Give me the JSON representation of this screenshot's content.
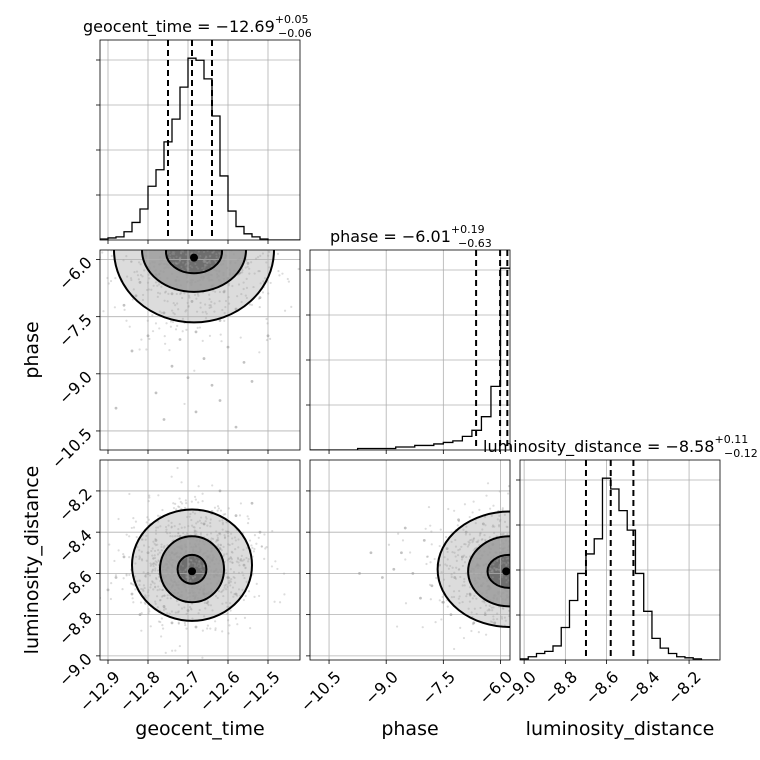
{
  "chart_data": {
    "type": "corner",
    "parameters": [
      {
        "name": "geocent_time",
        "label": "geocent_time",
        "title": {
          "prefix": "geocent_time = −12.69",
          "upper": "+0.05",
          "lower": "−0.06"
        },
        "range": [
          -12.92,
          -12.42
        ],
        "ticks": [
          "−12.9",
          "−12.8",
          "−12.7",
          "−12.6",
          "−12.5"
        ],
        "tick_values": [
          -12.9,
          -12.8,
          -12.7,
          -12.6,
          -12.5
        ],
        "median": -12.69,
        "quantiles": [
          -12.75,
          -12.69,
          -12.64
        ],
        "histogram": {
          "edges": [
            -12.92,
            -12.9,
            -12.88,
            -12.86,
            -12.84,
            -12.82,
            -12.8,
            -12.78,
            -12.76,
            -12.74,
            -12.72,
            -12.7,
            -12.68,
            -12.66,
            -12.64,
            -12.62,
            -12.6,
            -12.58,
            -12.56,
            -12.54,
            -12.52,
            -12.5,
            -12.48,
            -12.46,
            -12.44,
            -12.42
          ],
          "counts": [
            1,
            2,
            3,
            8,
            17,
            30,
            52,
            68,
            95,
            117,
            148,
            176,
            174,
            156,
            120,
            62,
            28,
            13,
            6,
            3,
            1,
            0,
            0,
            0,
            0
          ]
        }
      },
      {
        "name": "phase",
        "label": "phase",
        "title": {
          "prefix": "phase = −6.01",
          "upper": "+0.19",
          "lower": "−0.63"
        },
        "range": [
          -11.0,
          -5.75
        ],
        "ticks": [
          "−10.5",
          "−9.0",
          "−7.5",
          "−6.0"
        ],
        "tick_values": [
          -10.5,
          -9.0,
          -7.5,
          -6.0
        ],
        "median": -6.01,
        "quantiles": [
          -6.64,
          -6.01,
          -5.82
        ],
        "histogram": {
          "edges": [
            -11.0,
            -10.75,
            -10.5,
            -10.25,
            -10.0,
            -9.75,
            -9.5,
            -9.25,
            -9.0,
            -8.75,
            -8.5,
            -8.25,
            -8.0,
            -7.75,
            -7.5,
            -7.25,
            -7.0,
            -6.75,
            -6.5,
            -6.25,
            -6.0,
            -5.75
          ],
          "counts": [
            0,
            0,
            0,
            0,
            0,
            1,
            1,
            1,
            1,
            2,
            2,
            3,
            3,
            4,
            5,
            6,
            9,
            13,
            22,
            42,
            120
          ]
        }
      },
      {
        "name": "luminosity_distance",
        "label": "luminosity_distance",
        "title": {
          "prefix": "luminosity_distance = −8.58",
          "upper": "+0.11",
          "lower": "−0.12"
        },
        "range": [
          -9.02,
          -8.05
        ],
        "ticks": [
          "−9.0",
          "−8.8",
          "−8.6",
          "−8.4",
          "−8.2"
        ],
        "tick_values": [
          -9.0,
          -8.8,
          -8.6,
          -8.4,
          -8.2
        ],
        "median": -8.58,
        "quantiles": [
          -8.7,
          -8.58,
          -8.47
        ],
        "histogram": {
          "edges": [
            -9.02,
            -8.98,
            -8.94,
            -8.9,
            -8.86,
            -8.82,
            -8.78,
            -8.74,
            -8.7,
            -8.66,
            -8.62,
            -8.58,
            -8.54,
            -8.5,
            -8.46,
            -8.42,
            -8.38,
            -8.34,
            -8.3,
            -8.26,
            -8.22,
            -8.18,
            -8.14,
            -8.1,
            -8.06
          ],
          "counts": [
            1,
            3,
            6,
            8,
            13,
            30,
            55,
            80,
            98,
            112,
            168,
            158,
            138,
            120,
            80,
            45,
            20,
            11,
            6,
            3,
            2,
            1,
            0,
            0
          ]
        }
      }
    ],
    "pairs": [
      {
        "x": "geocent_time",
        "y": "phase",
        "peak": [
          -12.685,
          -5.95
        ],
        "samples": [
          [
            -12.7,
            -6.1
          ],
          [
            -12.66,
            -6.3
          ],
          [
            -12.72,
            -6.0
          ],
          [
            -12.6,
            -6.5
          ],
          [
            -12.78,
            -6.4
          ],
          [
            -12.8,
            -6.2
          ],
          [
            -12.55,
            -6.1
          ],
          [
            -12.64,
            -6.7
          ],
          [
            -12.74,
            -6.9
          ],
          [
            -12.69,
            -7.1
          ],
          [
            -12.58,
            -7.3
          ],
          [
            -12.82,
            -6.6
          ],
          [
            -12.76,
            -7.4
          ],
          [
            -12.62,
            -7.6
          ],
          [
            -12.68,
            -7.9
          ],
          [
            -12.72,
            -8.1
          ],
          [
            -12.6,
            -8.3
          ],
          [
            -12.8,
            -8.0
          ],
          [
            -12.86,
            -7.2
          ],
          [
            -12.52,
            -7.0
          ],
          [
            -12.66,
            -8.6
          ],
          [
            -12.74,
            -8.8
          ],
          [
            -12.56,
            -8.7
          ],
          [
            -12.7,
            -9.1
          ],
          [
            -12.64,
            -9.3
          ],
          [
            -12.78,
            -9.5
          ],
          [
            -12.84,
            -8.4
          ],
          [
            -12.5,
            -8.0
          ],
          [
            -12.62,
            -9.7
          ],
          [
            -12.68,
            -10.0
          ],
          [
            -12.76,
            -10.2
          ],
          [
            -12.58,
            -10.4
          ],
          [
            -12.88,
            -9.9
          ],
          [
            -12.54,
            -9.2
          ],
          [
            -12.66,
            -6.05
          ],
          [
            -12.7,
            -6.25
          ],
          [
            -12.73,
            -6.55
          ],
          [
            -12.61,
            -6.85
          ],
          [
            -12.57,
            -6.35
          ],
          [
            -12.83,
            -6.95
          ]
        ],
        "contour_levels": [
          {
            "center": [
              -12.685,
              -5.8
            ],
            "sx": 0.035,
            "sy": 0.28
          },
          {
            "center": [
              -12.685,
              -5.75
            ],
            "sx": 0.065,
            "sy": 0.55
          },
          {
            "center": [
              -12.685,
              -5.75
            ],
            "sx": 0.1,
            "sy": 0.95
          }
        ]
      },
      {
        "x": "geocent_time",
        "y": "luminosity_distance",
        "peak": [
          -12.69,
          -8.59
        ],
        "samples": [
          [
            -12.69,
            -8.58
          ],
          [
            -12.72,
            -8.62
          ],
          [
            -12.65,
            -8.52
          ],
          [
            -12.76,
            -8.66
          ],
          [
            -12.62,
            -8.48
          ],
          [
            -12.8,
            -8.6
          ],
          [
            -12.6,
            -8.4
          ],
          [
            -12.74,
            -8.5
          ],
          [
            -12.66,
            -8.7
          ],
          [
            -12.84,
            -8.7
          ],
          [
            -12.58,
            -8.32
          ],
          [
            -12.7,
            -8.78
          ],
          [
            -12.78,
            -8.44
          ],
          [
            -12.56,
            -8.56
          ],
          [
            -12.86,
            -8.52
          ],
          [
            -12.64,
            -8.3
          ],
          [
            -12.82,
            -8.8
          ],
          [
            -12.6,
            -8.62
          ],
          [
            -12.54,
            -8.26
          ],
          [
            -12.88,
            -8.62
          ],
          [
            -12.68,
            -8.86
          ],
          [
            -12.74,
            -8.84
          ],
          [
            -12.52,
            -8.4
          ],
          [
            -12.9,
            -8.68
          ],
          [
            -12.62,
            -8.2
          ],
          [
            -12.66,
            -8.36
          ],
          [
            -12.72,
            -8.42
          ],
          [
            -12.76,
            -8.76
          ],
          [
            -12.8,
            -8.5
          ],
          [
            -12.58,
            -8.7
          ]
        ],
        "contour_levels": [
          {
            "center": [
              -12.69,
              -8.58
            ],
            "sx": 0.018,
            "sy": 0.035
          },
          {
            "center": [
              -12.69,
              -8.58
            ],
            "sx": 0.04,
            "sy": 0.08
          },
          {
            "center": [
              -12.69,
              -8.56
            ],
            "sx": 0.075,
            "sy": 0.135
          }
        ]
      },
      {
        "x": "phase",
        "y": "luminosity_distance",
        "peak": [
          -5.85,
          -8.59
        ],
        "samples": [
          [
            -6.1,
            -8.58
          ],
          [
            -6.3,
            -8.62
          ],
          [
            -6.0,
            -8.5
          ],
          [
            -6.5,
            -8.66
          ],
          [
            -6.2,
            -8.46
          ],
          [
            -6.6,
            -8.56
          ],
          [
            -6.8,
            -8.7
          ],
          [
            -7.0,
            -8.52
          ],
          [
            -6.9,
            -8.4
          ],
          [
            -7.2,
            -8.62
          ],
          [
            -7.4,
            -8.48
          ],
          [
            -6.4,
            -8.8
          ],
          [
            -7.6,
            -8.56
          ],
          [
            -7.8,
            -8.66
          ],
          [
            -8.0,
            -8.44
          ],
          [
            -8.3,
            -8.6
          ],
          [
            -8.6,
            -8.5
          ],
          [
            -7.1,
            -8.34
          ],
          [
            -6.7,
            -8.84
          ],
          [
            -8.8,
            -8.58
          ],
          [
            -9.1,
            -8.62
          ],
          [
            -6.05,
            -8.3
          ],
          [
            -6.15,
            -8.84
          ],
          [
            -7.5,
            -8.74
          ],
          [
            -8.1,
            -8.72
          ],
          [
            -9.4,
            -8.5
          ],
          [
            -6.45,
            -8.36
          ],
          [
            -7.3,
            -8.8
          ],
          [
            -8.5,
            -8.38
          ],
          [
            -9.7,
            -8.6
          ]
        ],
        "contour_levels": [
          {
            "center": [
              -5.78,
              -8.59
            ],
            "sx": 0.28,
            "sy": 0.04
          },
          {
            "center": [
              -5.75,
              -8.59
            ],
            "sx": 0.55,
            "sy": 0.085
          },
          {
            "center": [
              -5.75,
              -8.58
            ],
            "sx": 0.95,
            "sy": 0.14
          }
        ]
      }
    ],
    "grid": true,
    "colors": {
      "line": "#000000",
      "points": "#9a9a9a",
      "grid": "#b0b0b0"
    }
  }
}
